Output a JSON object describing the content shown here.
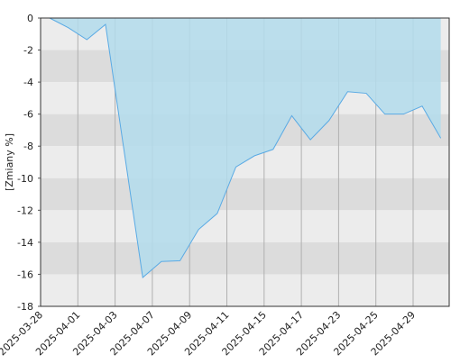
{
  "chart_data": {
    "type": "area",
    "y_label": "[Zmiany %]",
    "categories": [
      "2025-03-28",
      null,
      "2025-04-01",
      null,
      "2025-04-03",
      null,
      "2025-04-07",
      null,
      "2025-04-09",
      null,
      "2025-04-11",
      null,
      "2025-04-15",
      null,
      "2025-04-17",
      null,
      "2025-04-23",
      null,
      "2025-04-25",
      null,
      "2025-04-29",
      null
    ],
    "values": [
      0,
      -0.6,
      -1.35,
      -0.4,
      -8.3,
      -16.2,
      -15.2,
      -15.15,
      -13.2,
      -12.2,
      -9.3,
      -8.6,
      -8.2,
      -6.1,
      -7.6,
      -6.4,
      -4.6,
      -4.7,
      -6.0,
      -6.0,
      -5.5,
      -7.5
    ],
    "color": "#b3dcec",
    "line_color": "#5aaae4",
    "ylim": [
      -18,
      0
    ],
    "yticks": [
      0,
      -2,
      -4,
      -6,
      -8,
      -10,
      -12,
      -14,
      -16,
      -18
    ],
    "grid": true
  }
}
